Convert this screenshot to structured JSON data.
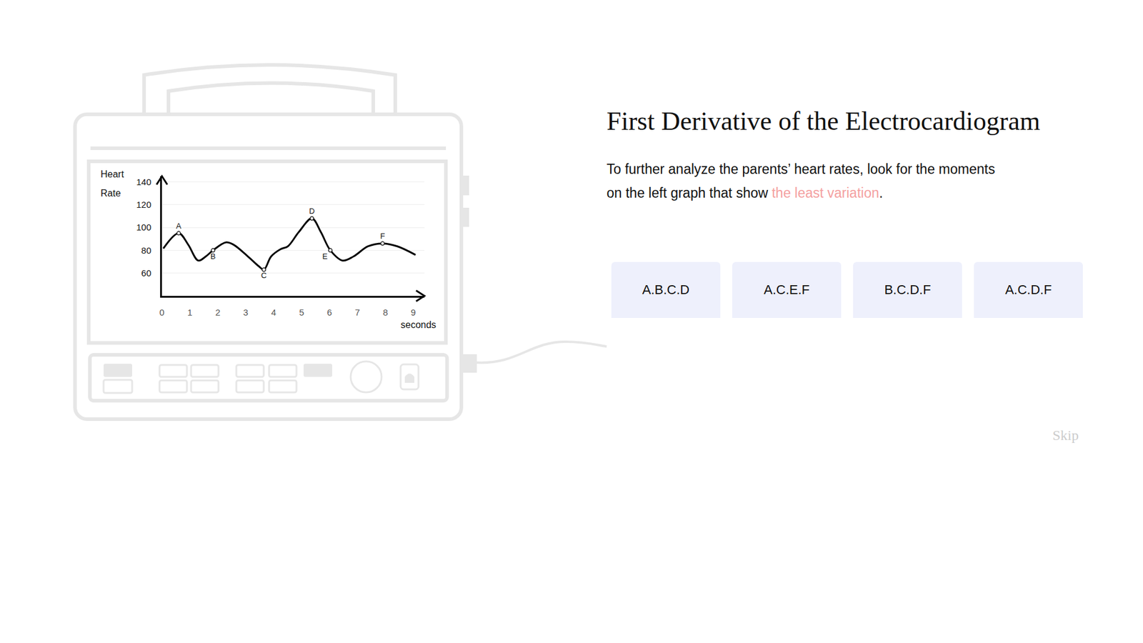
{
  "page": {
    "title": "First Derivative of the Electrocardiogram",
    "instruction": {
      "text": "To further analyze the parents’ heart rates, look for the moments on the left graph that show ",
      "highlight": "the least variation",
      "end": "."
    },
    "options": [
      "A.B.C.D",
      "A.C.E.F",
      "B.C.D.F",
      "A.C.D.F"
    ],
    "skip": "Skip"
  },
  "chart_data": {
    "type": "line",
    "color": "#000000",
    "line_style": "solid",
    "marker": "circle",
    "xlabel": "seconds",
    "ylabel": "Heart Rate",
    "x": [
      0.05,
      0.6,
      0.94,
      1.3,
      1.57,
      1.83,
      2.3,
      2.56,
      3.08,
      3.47,
      3.65,
      3.91,
      4.25,
      4.51,
      4.9,
      5.37,
      5.69,
      6.03,
      6.47,
      6.86,
      7.38,
      7.9,
      8.43,
      9.08
    ],
    "values": [
      81.6,
      95,
      85,
      71,
      74.6,
      80,
      87,
      85,
      74.6,
      66,
      63,
      74.6,
      81,
      83.5,
      96,
      108,
      96,
      80,
      71,
      74.6,
      83.5,
      86,
      83.5,
      76
    ],
    "points": [
      {
        "label": "A",
        "x": 0.6,
        "y": 95
      },
      {
        "label": "B",
        "x": 1.83,
        "y": 80
      },
      {
        "label": "C",
        "x": 3.65,
        "y": 63
      },
      {
        "label": "D",
        "x": 5.37,
        "y": 108
      },
      {
        "label": "E",
        "x": 6.03,
        "y": 80
      },
      {
        "label": "F",
        "x": 7.9,
        "y": 86
      }
    ],
    "xlim": [
      0,
      9.4
    ],
    "ylim": [
      40,
      145
    ],
    "xticks": [
      0,
      1,
      2,
      3,
      4,
      5,
      6,
      7,
      8,
      9
    ],
    "yticks": [
      60,
      80,
      100,
      120,
      140
    ],
    "grid": true
  }
}
